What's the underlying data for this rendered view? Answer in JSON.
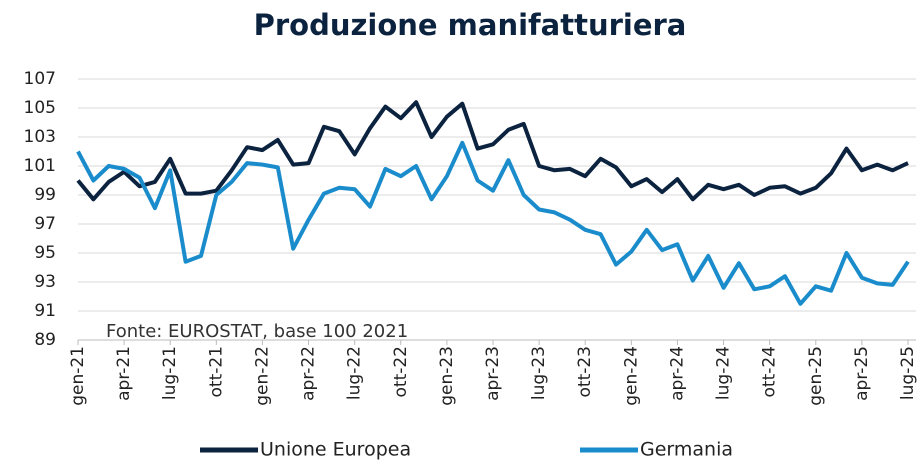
{
  "chart_data": {
    "type": "line",
    "title": "Produzione manifatturiera",
    "annotation": "Fonte: EUROSTAT, base 100 2021",
    "categories": [
      "gen-21",
      null,
      null,
      "apr-21",
      null,
      null,
      "lug-21",
      null,
      null,
      "ott-21",
      null,
      null,
      "gen-22",
      null,
      null,
      "apr-22",
      null,
      null,
      "lug-22",
      null,
      null,
      "ott-22",
      null,
      null,
      "gen-23",
      null,
      null,
      "apr-23",
      null,
      null,
      "lug-23",
      null,
      null,
      "ott-23",
      null,
      null,
      "gen-24",
      null,
      null,
      "apr-24",
      null,
      null,
      "lug-24",
      null,
      null,
      "ott-24",
      null,
      null,
      "gen-25",
      null,
      null,
      "apr-25",
      null,
      null,
      "lug-25"
    ],
    "series": [
      {
        "name": "Unione Europea",
        "color": "#0c2340",
        "values": [
          100,
          98.7,
          99.9,
          100.6,
          99.6,
          99.9,
          101.5,
          99.1,
          99.1,
          99.3,
          100.7,
          102.3,
          102.1,
          102.8,
          101.1,
          101.2,
          103.7,
          103.4,
          101.8,
          103.6,
          105.1,
          104.3,
          105.4,
          103.0,
          104.4,
          105.3,
          102.2,
          102.5,
          103.5,
          103.9,
          101.0,
          100.7,
          100.8,
          100.3,
          101.5,
          100.9,
          99.6,
          100.1,
          99.2,
          100.1,
          98.7,
          99.7,
          99.4,
          99.7,
          99.0,
          99.5,
          99.6,
          99.1,
          99.5,
          100.5,
          102.2,
          100.7,
          101.1,
          100.7,
          101.2
        ]
      },
      {
        "name": "Germania",
        "color": "#1a8ccc",
        "values": [
          102.0,
          100.0,
          101.0,
          100.8,
          100.2,
          98.1,
          100.7,
          94.4,
          94.8,
          99.0,
          99.9,
          101.2,
          101.1,
          100.9,
          95.3,
          97.3,
          99.1,
          99.5,
          99.4,
          98.2,
          100.8,
          100.3,
          101.0,
          98.7,
          100.3,
          102.6,
          100.0,
          99.3,
          101.4,
          99.0,
          98.0,
          97.8,
          97.3,
          96.6,
          96.3,
          94.2,
          95.1,
          96.6,
          95.2,
          95.6,
          93.1,
          94.8,
          92.6,
          94.3,
          92.5,
          92.7,
          93.4,
          91.5,
          92.7,
          92.4,
          95.0,
          93.3,
          92.9,
          92.8,
          94.4
        ]
      }
    ],
    "ylim": [
      89,
      107
    ],
    "yticks": [
      89,
      91,
      93,
      95,
      97,
      99,
      101,
      103,
      105,
      107
    ],
    "grid": true,
    "legend": "bottom"
  }
}
